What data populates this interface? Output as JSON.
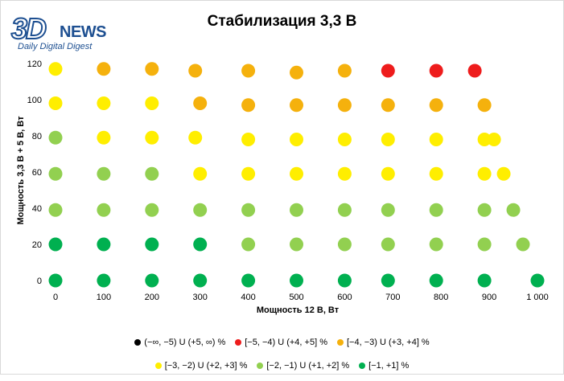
{
  "logo": {
    "mark": "3D",
    "word": "NEWS",
    "tagline": "Daily Digital Digest"
  },
  "chart_data": {
    "type": "scatter",
    "title": "Стабилизация 3,3 В",
    "xlabel": "Мощность  12 В, Вт",
    "ylabel": "Мощность  3,3 В + 5 В, Вт",
    "xlim": [
      0,
      1000
    ],
    "ylim": [
      0,
      120
    ],
    "xticks": [
      0,
      100,
      200,
      300,
      400,
      500,
      600,
      700,
      800,
      900,
      1000
    ],
    "xtick_labels": [
      "0",
      "100",
      "200",
      "300",
      "400",
      "500",
      "600",
      "700",
      "800",
      "900",
      "1 000"
    ],
    "yticks": [
      0,
      20,
      40,
      60,
      80,
      100,
      120
    ],
    "legend_position": "bottom",
    "grid": false,
    "series": [
      {
        "name": "(−∞, −5) U (+5, ∞) %",
        "color": "#000000",
        "points": []
      },
      {
        "name": "[−5, −4) U (+4, +5] %",
        "color": "#ee1c1c",
        "points": [
          [
            690,
            116
          ],
          [
            790,
            116
          ],
          [
            870,
            116
          ]
        ]
      },
      {
        "name": "[−4, −3) U (+3, +4] %",
        "color": "#f5b10d",
        "points": [
          [
            100,
            117
          ],
          [
            200,
            117
          ],
          [
            290,
            116
          ],
          [
            400,
            116
          ],
          [
            500,
            115
          ],
          [
            600,
            116
          ],
          [
            300,
            98
          ],
          [
            400,
            97
          ],
          [
            500,
            97
          ],
          [
            600,
            97
          ],
          [
            690,
            97
          ],
          [
            790,
            97
          ],
          [
            890,
            97
          ]
        ]
      },
      {
        "name": "[−3, −2) U (+2, +3] %",
        "color": "#ffee00",
        "points": [
          [
            0,
            117
          ],
          [
            0,
            98
          ],
          [
            100,
            98
          ],
          [
            200,
            98
          ],
          [
            100,
            79
          ],
          [
            200,
            79
          ],
          [
            290,
            79
          ],
          [
            400,
            78
          ],
          [
            500,
            78
          ],
          [
            600,
            78
          ],
          [
            690,
            78
          ],
          [
            790,
            78
          ],
          [
            890,
            78
          ],
          [
            910,
            78
          ],
          [
            300,
            59
          ],
          [
            400,
            59
          ],
          [
            500,
            59
          ],
          [
            600,
            59
          ],
          [
            690,
            59
          ],
          [
            790,
            59
          ],
          [
            890,
            59
          ],
          [
            930,
            59
          ]
        ]
      },
      {
        "name": "[−2, −1) U (+1, +2] %",
        "color": "#92d050",
        "points": [
          [
            0,
            79
          ],
          [
            0,
            59
          ],
          [
            100,
            59
          ],
          [
            200,
            59
          ],
          [
            0,
            39
          ],
          [
            100,
            39
          ],
          [
            200,
            39
          ],
          [
            300,
            39
          ],
          [
            400,
            39
          ],
          [
            500,
            39
          ],
          [
            600,
            39
          ],
          [
            690,
            39
          ],
          [
            790,
            39
          ],
          [
            890,
            39
          ],
          [
            950,
            39
          ],
          [
            400,
            20
          ],
          [
            500,
            20
          ],
          [
            600,
            20
          ],
          [
            690,
            20
          ],
          [
            790,
            20
          ],
          [
            890,
            20
          ],
          [
            970,
            20
          ]
        ]
      },
      {
        "name": "[−1, +1] %",
        "color": "#00b050",
        "points": [
          [
            0,
            20
          ],
          [
            100,
            20
          ],
          [
            200,
            20
          ],
          [
            300,
            20
          ],
          [
            0,
            0
          ],
          [
            100,
            0
          ],
          [
            200,
            0
          ],
          [
            300,
            0
          ],
          [
            400,
            0
          ],
          [
            500,
            0
          ],
          [
            600,
            0
          ],
          [
            690,
            0
          ],
          [
            790,
            0
          ],
          [
            890,
            0
          ],
          [
            1000,
            0
          ]
        ]
      }
    ]
  }
}
